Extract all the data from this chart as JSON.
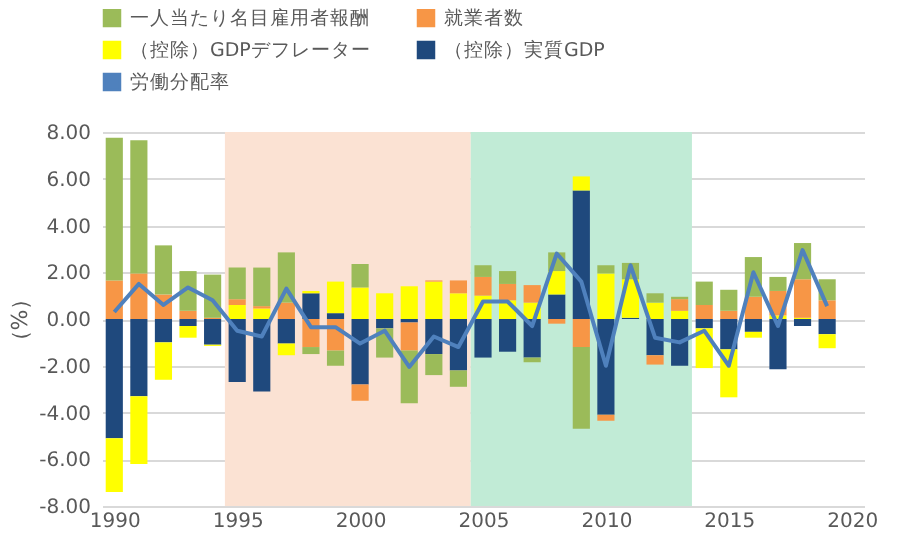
{
  "chart_data": {
    "type": "bar",
    "stacked": true,
    "ylabel": "（%）",
    "legend": "top",
    "grid": "y",
    "marker": "none",
    "x": [
      1990,
      1991,
      1992,
      1993,
      1994,
      1995,
      1996,
      1997,
      1998,
      1999,
      2000,
      2001,
      2002,
      2003,
      2004,
      2005,
      2006,
      2007,
      2008,
      2009,
      2010,
      2011,
      2012,
      2013,
      2014,
      2015,
      2016,
      2017,
      2018,
      2019
    ],
    "xlim": [
      1989.5,
      2020.5
    ],
    "xticks": [
      1990,
      1995,
      2000,
      2005,
      2010,
      2015,
      2020
    ],
    "ylim": [
      -8,
      8
    ],
    "yticks": [
      {
        "value": -8,
        "label": "-8.00"
      },
      {
        "value": -6,
        "label": "-6.00"
      },
      {
        "value": -4,
        "label": "-4.00"
      },
      {
        "value": -2,
        "label": "-2.00"
      },
      {
        "value": 0,
        "label": "0.00"
      },
      {
        "value": 2,
        "label": "2.00"
      },
      {
        "value": 4,
        "label": "4.00"
      },
      {
        "value": 6,
        "label": "6.00"
      },
      {
        "value": 8,
        "label": "8.00"
      }
    ],
    "series": [
      {
        "name": "（控除）実質GDP",
        "color": "#1f497d",
        "values": [
          -5.1,
          -3.3,
          -1.0,
          -0.3,
          -1.1,
          -2.7,
          -3.1,
          -1.05,
          1.1,
          0.25,
          -2.8,
          -0.4,
          -0.15,
          -1.5,
          -2.2,
          -1.65,
          -1.4,
          -1.65,
          1.05,
          5.5,
          -4.1,
          0.05,
          -1.55,
          -2.0,
          -0.4,
          -1.3,
          -0.55,
          -2.15,
          -0.3,
          -0.65
        ]
      },
      {
        "name": "（控除）GDPデフレーター",
        "color": "#ffff00",
        "values": [
          -2.3,
          -2.9,
          -1.6,
          -0.5,
          -0.05,
          0.6,
          0.45,
          -0.5,
          0.1,
          1.35,
          1.35,
          1.1,
          1.4,
          1.6,
          1.1,
          1.0,
          0.8,
          0.7,
          1.0,
          0.6,
          1.95,
          1.65,
          0.7,
          0.35,
          -1.7,
          -2.05,
          -0.25,
          0.15,
          0.05,
          -0.6
        ]
      },
      {
        "name": "就業者数",
        "color": "#f79646",
        "values": [
          1.65,
          1.95,
          1.05,
          0.35,
          0.05,
          0.25,
          0.1,
          0.7,
          -1.2,
          -1.35,
          -0.7,
          null,
          -1.2,
          0.05,
          0.55,
          0.8,
          0.7,
          0.75,
          -0.2,
          -1.2,
          -0.25,
          null,
          -0.4,
          0.5,
          0.6,
          0.35,
          0.95,
          1.05,
          1.65,
          0.8
        ]
      },
      {
        "name": "一人当たり名目雇用者報酬",
        "color": "#9bbb59",
        "values": [
          6.1,
          5.7,
          2.1,
          1.7,
          1.85,
          1.35,
          1.65,
          2.15,
          -0.3,
          -0.65,
          1.0,
          -1.25,
          -2.25,
          -0.9,
          -0.7,
          0.5,
          0.55,
          -0.2,
          0.8,
          -3.5,
          0.35,
          0.7,
          0.4,
          0.1,
          1.0,
          0.9,
          1.7,
          0.6,
          1.55,
          0.9
        ]
      },
      {
        "name": "労働分配率",
        "type": "line",
        "color": "#4f81bd",
        "values": [
          0.3,
          1.5,
          0.6,
          1.35,
          0.8,
          -0.5,
          -0.75,
          1.3,
          -0.35,
          -0.35,
          -1.05,
          -0.5,
          -2.05,
          -0.75,
          -1.2,
          0.75,
          0.75,
          -0.3,
          2.8,
          1.6,
          -2.0,
          2.3,
          -0.8,
          -1.0,
          -0.5,
          -2.0,
          2.0,
          -0.3,
          2.95,
          0.55
        ]
      }
    ],
    "bands": [
      {
        "axis": "x",
        "from": 1994.5,
        "to": 2004.5,
        "color": "#fbe2d3"
      },
      {
        "axis": "x",
        "from": 2004.5,
        "to": 2013.5,
        "color": "#c1ebd6"
      }
    ]
  }
}
